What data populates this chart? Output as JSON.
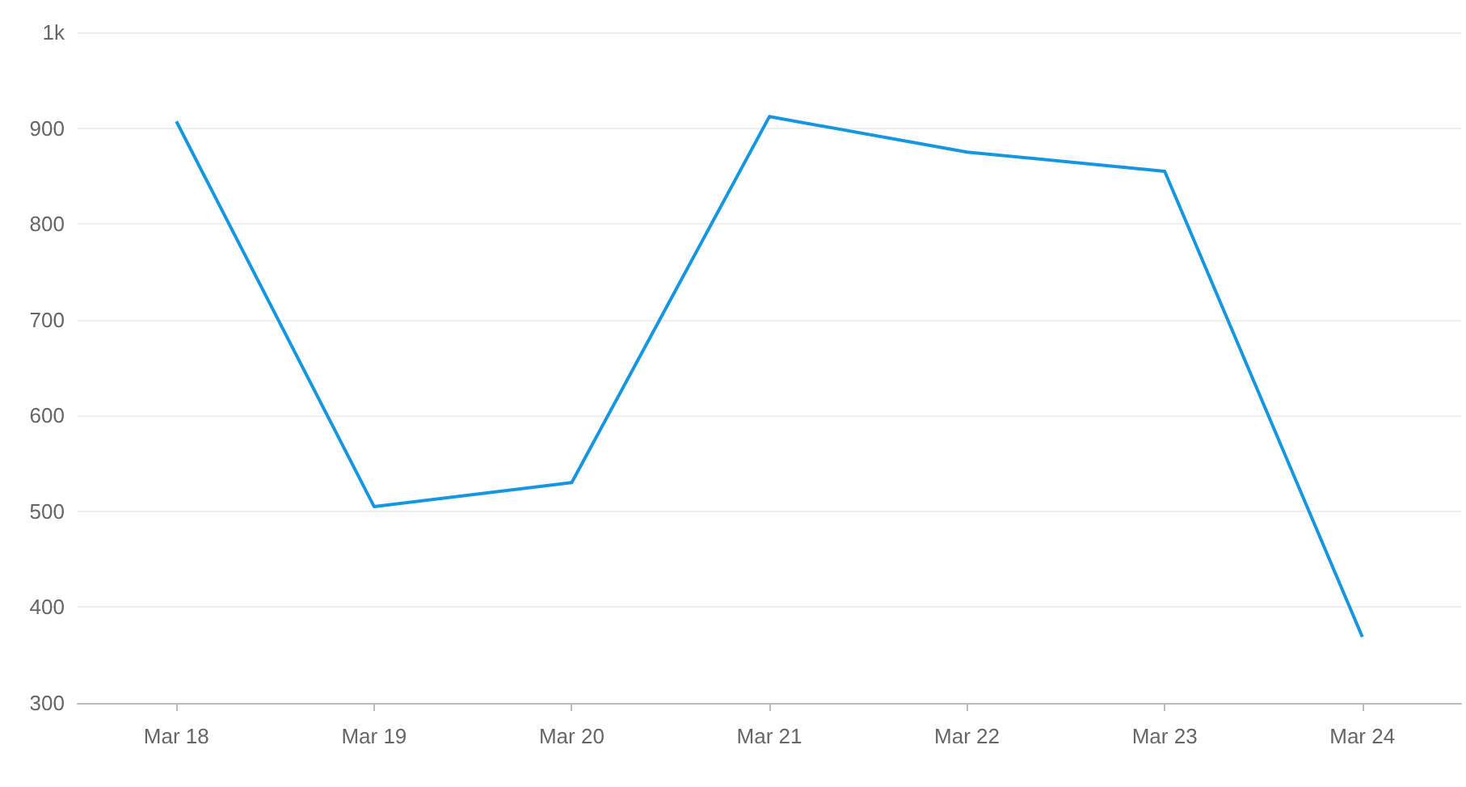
{
  "chart_data": {
    "type": "line",
    "categories": [
      "Mar 18",
      "Mar 19",
      "Mar 20",
      "Mar 21",
      "Mar 22",
      "Mar 23",
      "Mar 24"
    ],
    "series": [
      {
        "color": "#1496e0",
        "values": [
          907,
          505,
          530,
          912,
          875,
          855,
          369
        ]
      }
    ],
    "ylim": [
      300,
      1000
    ],
    "yticks": [
      300,
      400,
      500,
      600,
      700,
      800,
      900,
      {
        "value": 1000,
        "label": "1k"
      }
    ],
    "grid": "y",
    "marker": "none",
    "line_style": "solid"
  }
}
